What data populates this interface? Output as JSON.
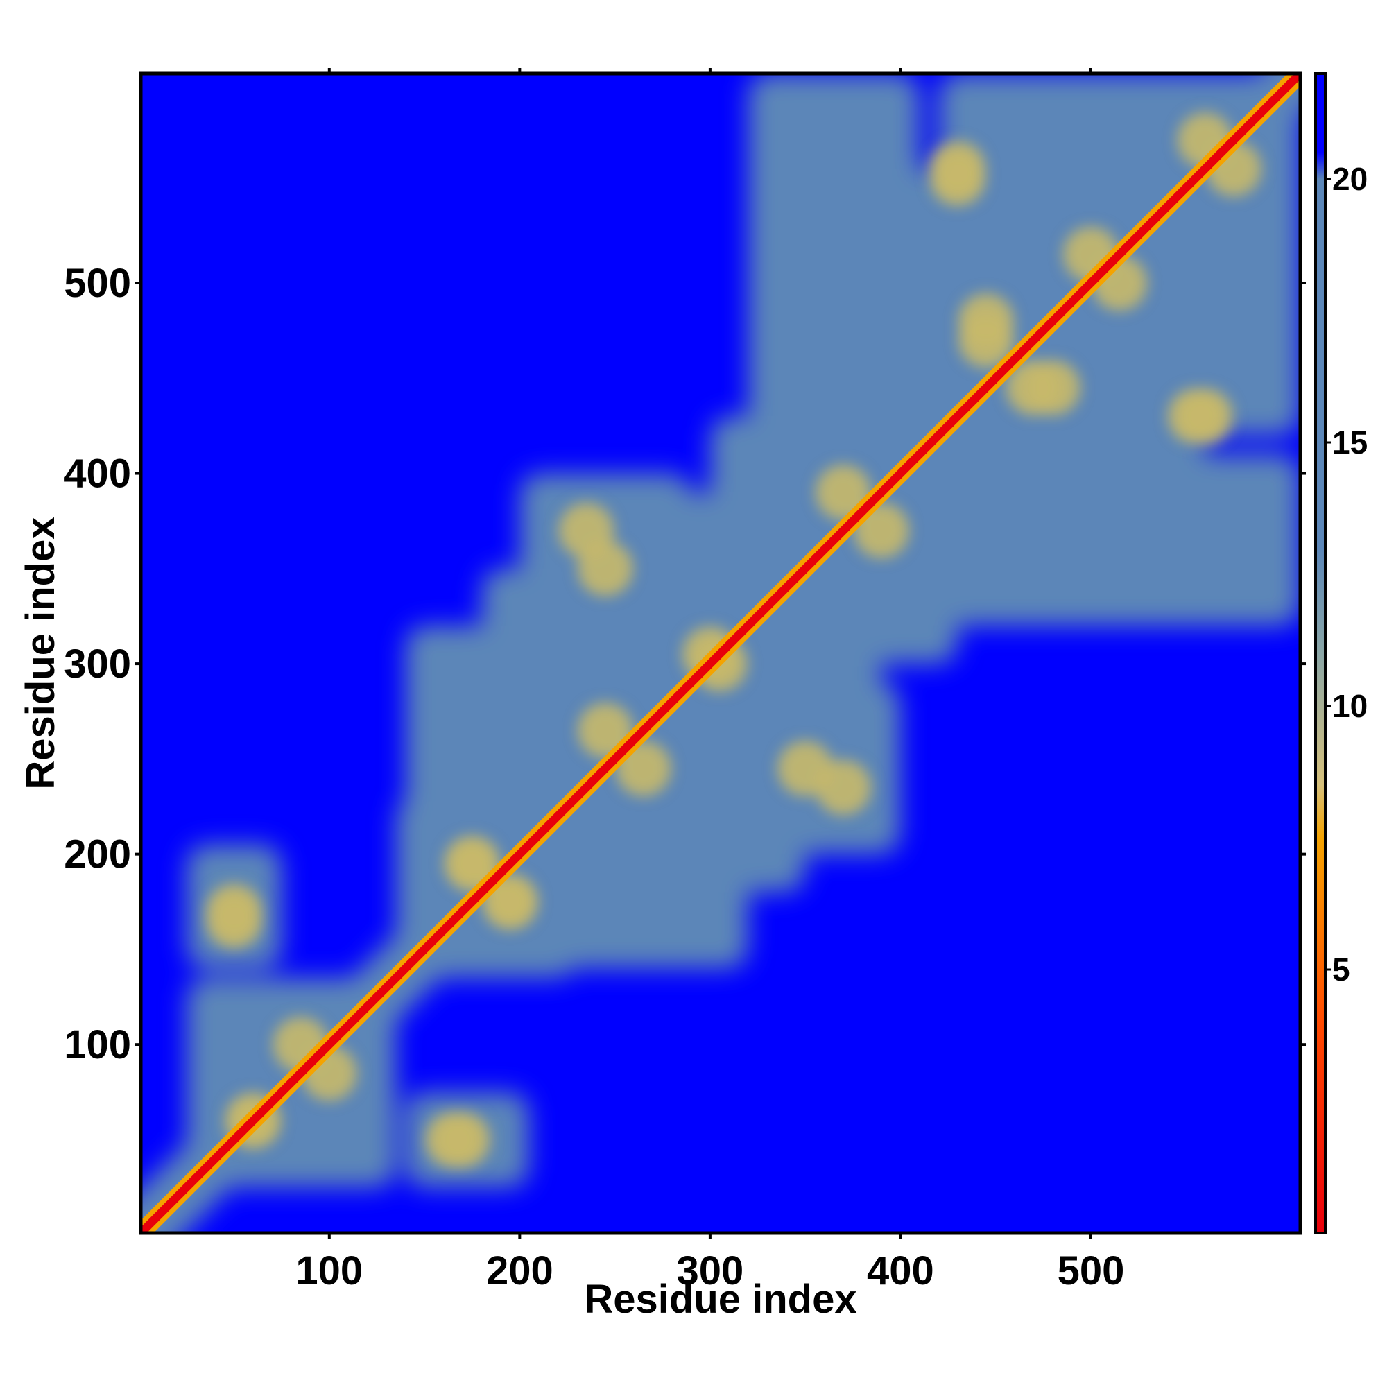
{
  "chart_data": {
    "type": "heatmap",
    "title": "",
    "xlabel": "Residue index",
    "ylabel": "Residue index",
    "xlim": [
      1,
      610
    ],
    "ylim": [
      1,
      610
    ],
    "x_ticks": [
      100,
      200,
      300,
      400,
      500
    ],
    "y_ticks": [
      100,
      200,
      300,
      400,
      500
    ],
    "colorbar": {
      "ticks": [
        5,
        10,
        15,
        20
      ],
      "range": [
        0,
        22
      ],
      "colors": {
        "low": "#e8000b",
        "mid": "#f4a300",
        "transition": "#c8b96a",
        "high": "#5b86b8",
        "max": "#0000ff"
      },
      "stops": [
        {
          "value": 0,
          "color": "#e8000b"
        },
        {
          "value": 4,
          "color": "#ff4a00"
        },
        {
          "value": 7.5,
          "color": "#f4a300"
        },
        {
          "value": 8.5,
          "color": "#d6c07a"
        },
        {
          "value": 11,
          "color": "#8aa6a6"
        },
        {
          "value": 13,
          "color": "#5b86b8"
        },
        {
          "value": 20,
          "color": "#5b86b8"
        },
        {
          "value": 20.5,
          "color": "#0000ff"
        },
        {
          "value": 22,
          "color": "#0000ff"
        }
      ]
    },
    "diagonal": {
      "from": 1,
      "to": 610,
      "value": 2
    },
    "contact_regions": [
      {
        "x": [
          1,
          20
        ],
        "y": [
          1,
          20
        ]
      },
      {
        "x": [
          25,
          130
        ],
        "y": [
          25,
          135
        ]
      },
      {
        "x": [
          35,
          75
        ],
        "y": [
          145,
          205
        ]
      },
      {
        "x": [
          140,
          205
        ],
        "y": [
          25,
          75
        ]
      },
      {
        "x": [
          135,
          225
        ],
        "y": [
          135,
          230
        ]
      },
      {
        "x": [
          140,
          215
        ],
        "y": [
          205,
          310
        ]
      },
      {
        "x": [
          225,
          320
        ],
        "y": [
          140,
          275
        ]
      },
      {
        "x": [
          240,
          350
        ],
        "y": [
          180,
          320
        ]
      },
      {
        "x": [
          205,
          330
        ],
        "y": [
          300,
          390
        ]
      },
      {
        "x": [
          280,
          400
        ],
        "y": [
          200,
          290
        ]
      },
      {
        "x": [
          325,
          430
        ],
        "y": [
          300,
          450
        ]
      },
      {
        "x": [
          320,
          410
        ],
        "y": [
          420,
          610
        ]
      },
      {
        "x": [
          380,
          520
        ],
        "y": [
          330,
          470
        ]
      },
      {
        "x": [
          400,
          610
        ],
        "y": [
          420,
          560
        ]
      },
      {
        "x": [
          430,
          610
        ],
        "y": [
          520,
          610
        ]
      }
    ],
    "hotspots": [
      {
        "x": 60,
        "y": 60
      },
      {
        "x": 100,
        "y": 85
      },
      {
        "x": 50,
        "y": 170
      },
      {
        "x": 165,
        "y": 50
      },
      {
        "x": 195,
        "y": 175
      },
      {
        "x": 175,
        "y": 195
      },
      {
        "x": 245,
        "y": 265
      },
      {
        "x": 300,
        "y": 305
      },
      {
        "x": 235,
        "y": 370
      },
      {
        "x": 350,
        "y": 245
      },
      {
        "x": 370,
        "y": 390
      },
      {
        "x": 445,
        "y": 470
      },
      {
        "x": 480,
        "y": 445
      },
      {
        "x": 430,
        "y": 560
      },
      {
        "x": 555,
        "y": 430
      },
      {
        "x": 560,
        "y": 575
      },
      {
        "x": 515,
        "y": 500
      }
    ]
  }
}
